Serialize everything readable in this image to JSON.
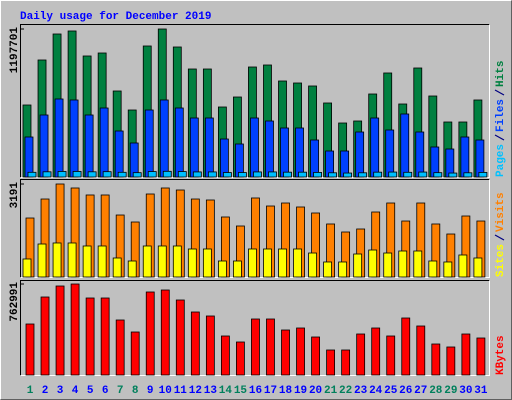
{
  "chart_data": {
    "type": "bar",
    "title": "Daily usage for December 2019",
    "categories": [
      "1",
      "2",
      "3",
      "4",
      "5",
      "6",
      "7",
      "8",
      "9",
      "10",
      "11",
      "12",
      "13",
      "14",
      "15",
      "16",
      "17",
      "18",
      "19",
      "20",
      "21",
      "22",
      "23",
      "24",
      "25",
      "26",
      "27",
      "28",
      "29",
      "30",
      "31"
    ],
    "category_colors": [
      "#00805c",
      "#0000ff",
      "#0000ff",
      "#0000ff",
      "#0000ff",
      "#0000ff",
      "#00805c",
      "#00805c",
      "#0000ff",
      "#0000ff",
      "#0000ff",
      "#0000ff",
      "#0000ff",
      "#00805c",
      "#00805c",
      "#0000ff",
      "#0000ff",
      "#0000ff",
      "#0000ff",
      "#0000ff",
      "#00805c",
      "#00805c",
      "#0000ff",
      "#0000ff",
      "#0000ff",
      "#0000ff",
      "#0000ff",
      "#00805c",
      "#00805c",
      "#0000ff",
      "#0000ff"
    ],
    "panels": [
      {
        "ylim": [
          0,
          1197701
        ],
        "yticks": [
          1197701
        ],
        "series": [
          {
            "name": "Hits",
            "color": "#008040",
            "values": [
              582700,
              946900,
              1157300,
              1181600,
              979300,
              1003500,
              696000,
              542200,
              1060200,
              1197701,
              1052100,
              874000,
              874000,
              566500,
              647400,
              890200,
              906400,
              776900,
              760700,
              736500,
              598900,
              437000,
              453200,
              671700,
              841700,
              590800,
              882100,
              655500,
              445100,
              445100,
              623200
            ]
          },
          {
            "name": "Files",
            "color": "#0040ff",
            "values": [
              323700,
              501800,
              631300,
              623200,
              501800,
              558400,
              372300,
              275200,
              542200,
              623200,
              558400,
              477500,
              477500,
              307500,
              267100,
              477500,
              453200,
              396600,
              396600,
              299400,
              210400,
              210400,
              364200,
              477500,
              380400,
              509900,
              364200,
              242800,
              226600,
              323700,
              299400
            ]
          },
          {
            "name": "Pages",
            "color": "#00c0ff",
            "values": [
              38000,
              42000,
              45000,
              45000,
              42000,
              43000,
              38000,
              35000,
              44000,
              46000,
              44000,
              41000,
              41000,
              36000,
              36000,
              41000,
              41000,
              39000,
              39000,
              37000,
              34000,
              32000,
              34000,
              39000,
              40000,
              38000,
              40000,
              35000,
              32000,
              34000,
              37000
            ]
          }
        ]
      },
      {
        "ylim": [
          0,
          3191
        ],
        "yticks": [
          3191
        ],
        "series": [
          {
            "name": "Visits",
            "color": "#ff8000",
            "values": [
              2024,
              2676,
              3191,
              3054,
              2814,
              2814,
              2127,
              1887,
              2848,
              3054,
              2985,
              2676,
              2642,
              2059,
              1750,
              2711,
              2436,
              2539,
              2402,
              2196,
              1819,
              1544,
              1647,
              2230,
              2539,
              1921,
              2539,
              1819,
              1475,
              2093,
              1921
            ]
          },
          {
            "name": "Sites",
            "color": "#ffff00",
            "values": [
              618,
              1132,
              1167,
              1167,
              1064,
              1064,
              652,
              549,
              1064,
              1064,
              1064,
              961,
              961,
              549,
              549,
              961,
              961,
              961,
              961,
              823,
              515,
              515,
              789,
              926,
              823,
              892,
              892,
              549,
              515,
              755,
              652
            ]
          }
        ]
      },
      {
        "ylim": [
          0,
          762991
        ],
        "yticks": [
          762991
        ],
        "series": [
          {
            "name": "KBytes",
            "color": "#ff0000",
            "values": [
              427610,
              653990,
              746220,
              762991,
              645610,
              645610,
              461150,
              360530,
              695920,
              712680,
              628840,
              528220,
              494690,
              327000,
              276690,
              469530,
              469530,
              377300,
              394070,
              318610,
              209610,
              209610,
              343760,
              394070,
              327000,
              477920,
              410840,
              259920,
              234770,
              343760,
              310230
            ]
          }
        ]
      }
    ]
  }
}
